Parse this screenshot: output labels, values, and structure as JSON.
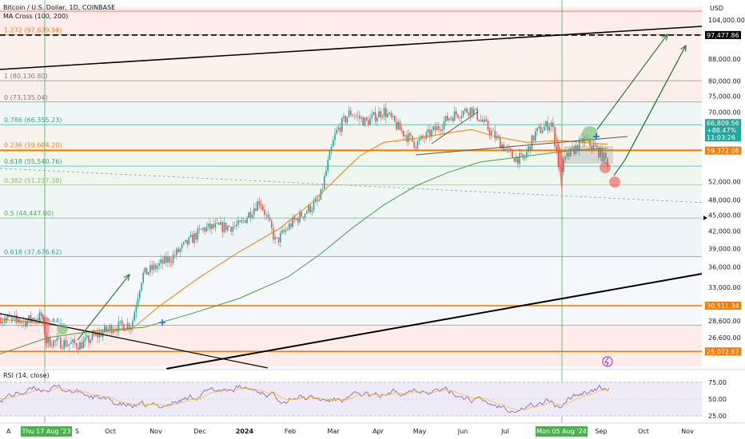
{
  "header": {
    "symbol": "Bitcoin / U.S. Dollar, 1D, COINBASE",
    "indicator": "MA Cross (100, 200)",
    "currency": "USD"
  },
  "rsi": {
    "title": "RSI (14, close)",
    "ticks": [
      "75.00",
      "50.00",
      "25.00"
    ]
  },
  "chart_data": {
    "type": "candlestick",
    "xaxis": {
      "labels": [
        "Oct",
        "Nov",
        "Dec",
        "2024",
        "Feb",
        "Mar",
        "Apr",
        "May",
        "Jun",
        "Jul",
        "Sep",
        "Oct",
        "Nov"
      ],
      "highlights": [
        "Thu 17 Aug '23",
        "Mon 05 Aug '24"
      ]
    },
    "yaxis": {
      "scale": "log",
      "ylim": [
        23500,
        110000
      ],
      "ticks": [
        "104,000.00",
        "88,000.00",
        "80,000.00",
        "75,000.00",
        "70,000.00",
        "64,000.00",
        "52,000.00",
        "48,000.00",
        "45,000.00",
        "42,000.00",
        "39,000.00",
        "36,000.00",
        "33,000.00",
        "28,600.00",
        "26,600.00"
      ]
    },
    "price_tags": [
      {
        "label": "97,477.86",
        "value": 97477.86,
        "color": "#000000"
      },
      {
        "label": "59,372.08",
        "value": 59372.08,
        "color": "#f57c00"
      },
      {
        "label": "66,809.56",
        "value": 66809.56,
        "color": "#26a69a"
      },
      {
        "label": "+88.47%",
        "value": 66809.56,
        "color": "#26a69a"
      },
      {
        "label": "11:03:26",
        "value": 66809.56,
        "color": "#26a69a"
      },
      {
        "label": "30,511.34",
        "value": 30511.34,
        "color": "#f57c00"
      },
      {
        "label": "25,072.67",
        "value": 25072.67,
        "color": "#f57c00"
      }
    ],
    "fib_levels": [
      {
        "label": "1.272 (97,639.94)",
        "value": 97639.94,
        "color": "#f57c00"
      },
      {
        "label": "1 (80,130.80)",
        "value": 80130.8,
        "color": "#787b86"
      },
      {
        "label": "0 (73,135.04)",
        "value": 73135.04,
        "color": "#787b86"
      },
      {
        "label": "0.786 (66,355.23)",
        "value": 66355.23,
        "color": "#26a69a"
      },
      {
        "label": "0.236 (59,604.20)",
        "value": 59604.2,
        "color": "#f57c00"
      },
      {
        "label": "0.618 (55,540.76)",
        "value": 55540.76,
        "color": "#26a69a"
      },
      {
        "label": "0.382 (51,217.38)",
        "value": 51217.38,
        "color": "#8bc34a"
      },
      {
        "label": "0.5 (44,447.00)",
        "value": 44447.0,
        "color": "#4caf50"
      },
      {
        "label": "0.618 (37,676.62)",
        "value": 37676.62,
        "color": "#26a69a"
      },
      {
        "label": "0.786 (28,037.44)",
        "value": 28037.44,
        "color": "#26a69a"
      }
    ],
    "colors": {
      "up": "#26a69a",
      "down": "#ef5350",
      "ma100": "#f57c00",
      "ma200": "#43a047"
    }
  }
}
